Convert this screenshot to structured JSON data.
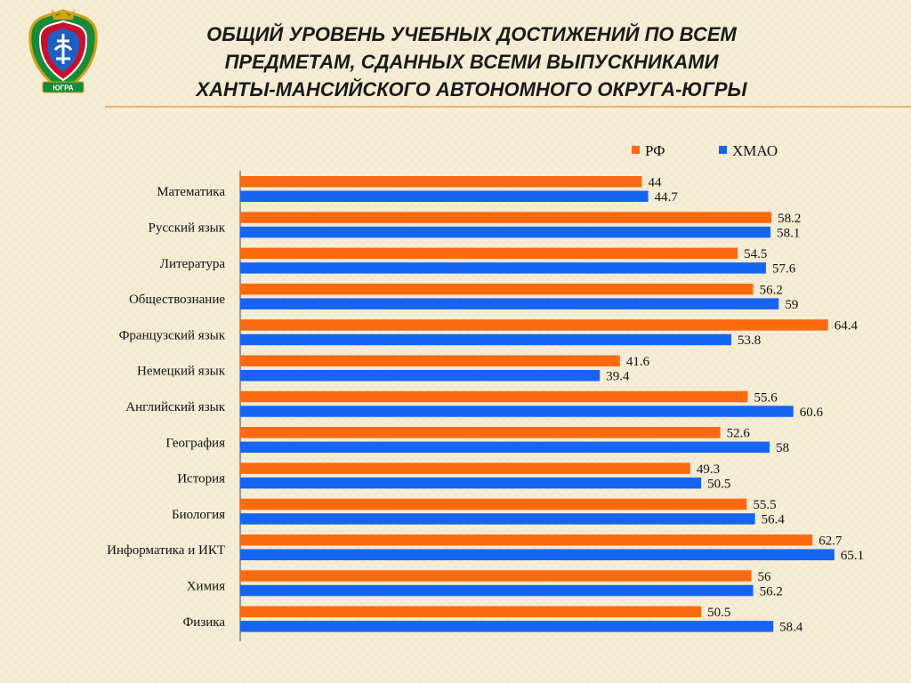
{
  "header": {
    "title_lines": [
      "Общий уровень учебных достижений по всем",
      "предметам, сданных всеми выпускниками",
      "Ханты-Мансийского автономного округа-Югры"
    ],
    "crest_icon": "khmao-coat-of-arms-icon",
    "crest_text": "ЮГРА"
  },
  "colors": {
    "rf": "#fb6a10",
    "hmao": "#1665f2",
    "axis": "#7f7f7f",
    "rule": "#e1b66a"
  },
  "legend": [
    {
      "key": "rf",
      "label": "РФ",
      "color": "#fb6a10"
    },
    {
      "key": "hmao",
      "label": "ХМАО",
      "color": "#1665f2"
    }
  ],
  "chart_data": {
    "type": "bar",
    "orientation": "horizontal",
    "categories": [
      "Математика",
      "Русский язык",
      "Литература",
      "Обществознание",
      "Французский язык",
      "Немецкий язык",
      "Английский язык",
      "География",
      "История",
      "Биология",
      "Информатика и ИКТ",
      "Химия",
      "Физика"
    ],
    "series": [
      {
        "name": "РФ",
        "color": "#fb6a10",
        "values": [
          44,
          58.2,
          54.5,
          56.2,
          64.4,
          41.6,
          55.6,
          52.6,
          49.3,
          55.5,
          62.7,
          56,
          50.5
        ]
      },
      {
        "name": "ХМАО",
        "color": "#1665f2",
        "values": [
          44.7,
          58.1,
          57.6,
          59,
          53.8,
          39.4,
          60.6,
          58,
          50.5,
          56.4,
          65.1,
          56.2,
          58.4
        ]
      }
    ],
    "xlim": [
      0,
      70
    ],
    "grid": false,
    "legend_position": "top-right",
    "data_labels": true
  }
}
